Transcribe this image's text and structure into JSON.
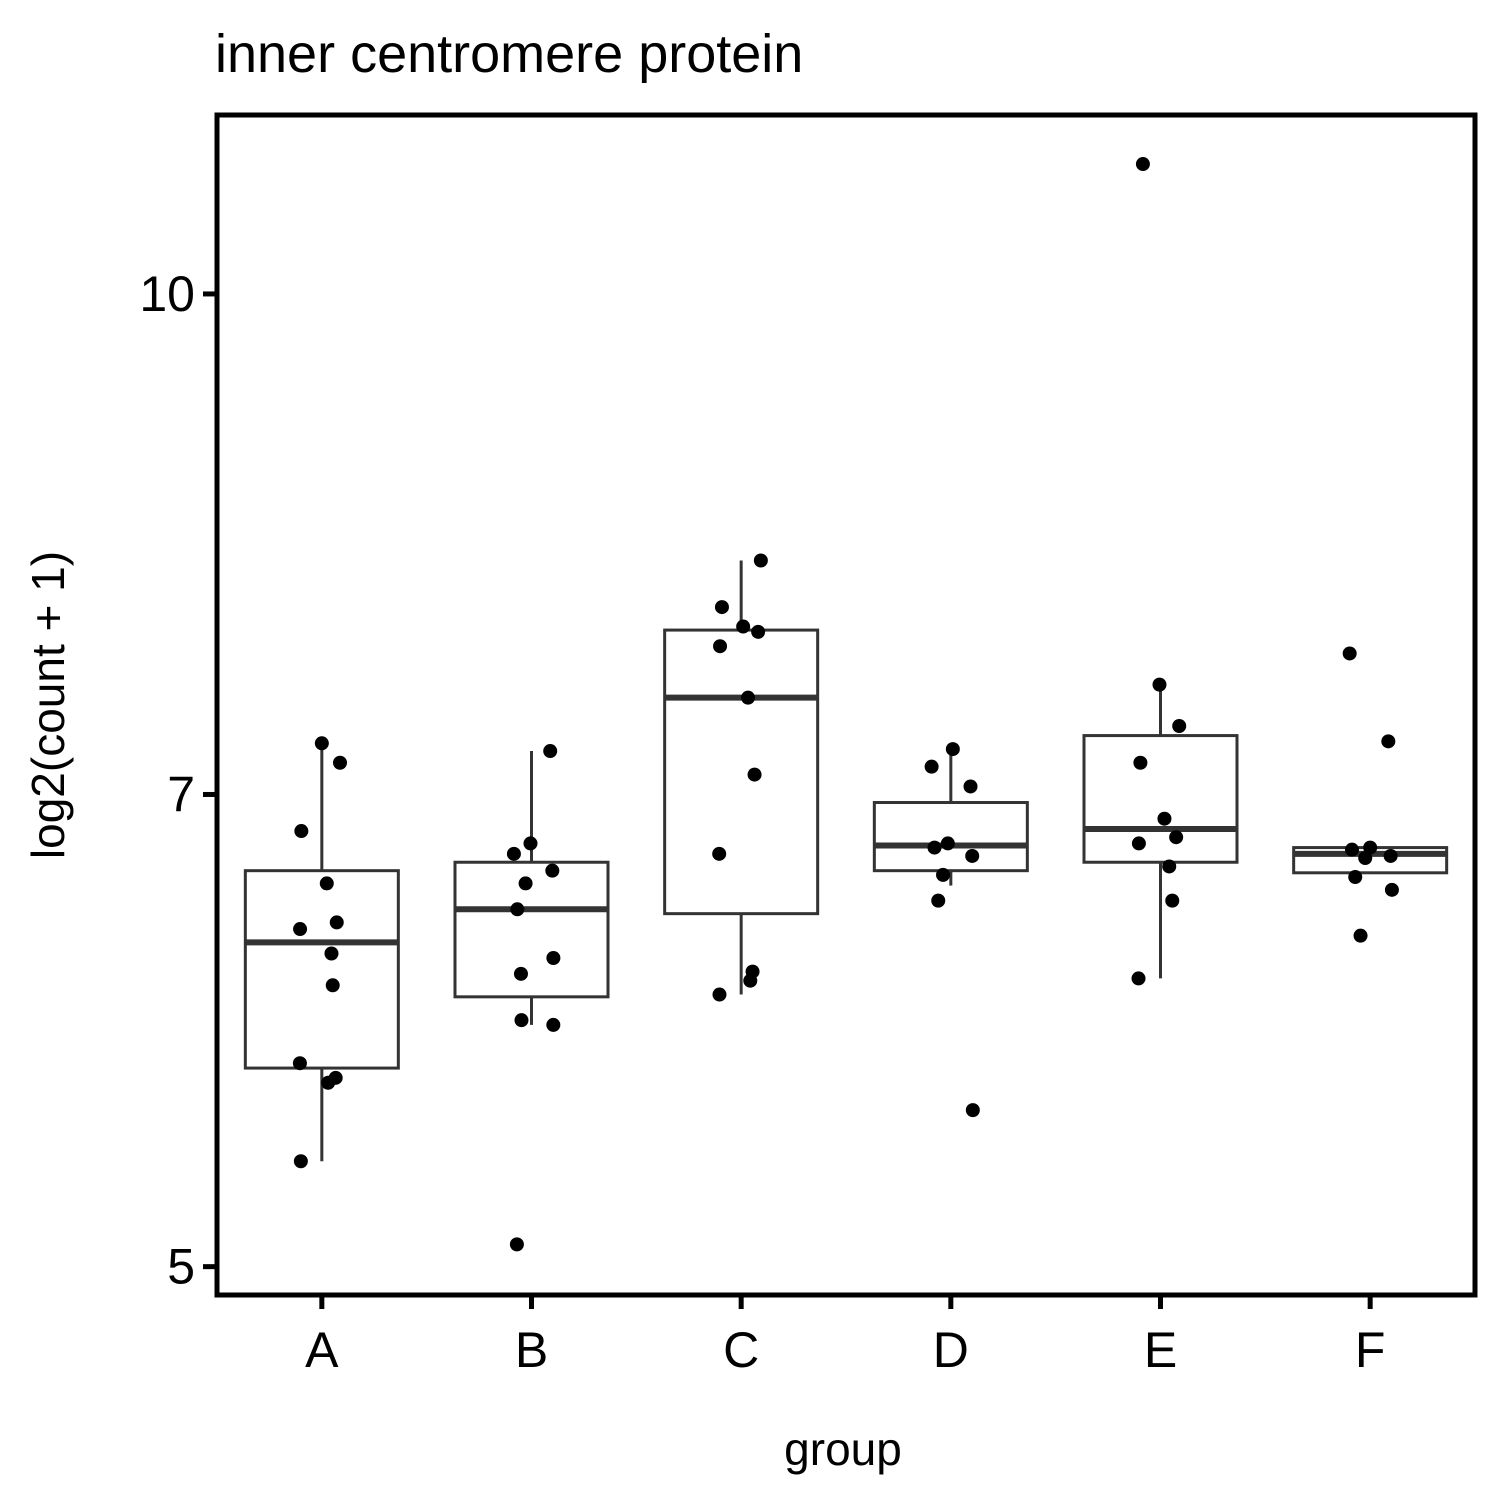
{
  "chart_data": {
    "type": "box",
    "title": "inner centromere protein",
    "x_label": "group",
    "y_label": "log2(count + 1)",
    "categories": [
      "A",
      "B",
      "C",
      "D",
      "E",
      "F"
    ],
    "boxes": [
      {
        "whisker_low": 5.39,
        "q1": 5.76,
        "median": 6.3,
        "q3": 6.63,
        "whisker_high": 7.26,
        "points": [
          7.26,
          7.16,
          6.82,
          6.57,
          6.39,
          6.36,
          6.25,
          6.11,
          5.78,
          5.72,
          5.7,
          5.39
        ]
      },
      {
        "whisker_low": 5.94,
        "q1": 6.06,
        "median": 6.45,
        "q3": 6.67,
        "whisker_high": 7.22,
        "points": [
          7.22,
          6.76,
          6.71,
          6.63,
          6.57,
          6.45,
          6.23,
          6.16,
          5.96,
          5.94,
          5.08
        ]
      },
      {
        "whisker_low": 6.07,
        "q1": 6.43,
        "median": 7.5,
        "q3": 7.87,
        "whisker_high": 8.27,
        "points": [
          8.27,
          8.0,
          7.89,
          7.86,
          7.78,
          7.5,
          7.1,
          6.71,
          6.17,
          6.13,
          6.07
        ]
      },
      {
        "whisker_low": 6.56,
        "q1": 6.63,
        "median": 6.75,
        "q3": 6.96,
        "whisker_high": 7.21,
        "points": [
          7.23,
          7.14,
          7.04,
          6.76,
          6.74,
          6.7,
          6.61,
          6.49,
          5.59
        ]
      },
      {
        "whisker_low": 6.14,
        "q1": 6.67,
        "median": 6.83,
        "q3": 7.3,
        "whisker_high": 7.57,
        "points": [
          10.97,
          7.57,
          7.35,
          7.16,
          6.88,
          6.79,
          6.76,
          6.65,
          6.49,
          6.14
        ]
      },
      {
        "whisker_low": 6.62,
        "q1": 6.62,
        "median": 6.71,
        "q3": 6.74,
        "whisker_high": 6.74,
        "points": [
          7.74,
          7.27,
          6.74,
          6.73,
          6.7,
          6.69,
          6.6,
          6.54,
          6.33
        ]
      }
    ],
    "ylim": [
      4.9,
      11.36
    ],
    "yticks": [
      5,
      7,
      10
    ],
    "log_scale": true,
    "color": "#333333",
    "point_color": "#000000"
  }
}
